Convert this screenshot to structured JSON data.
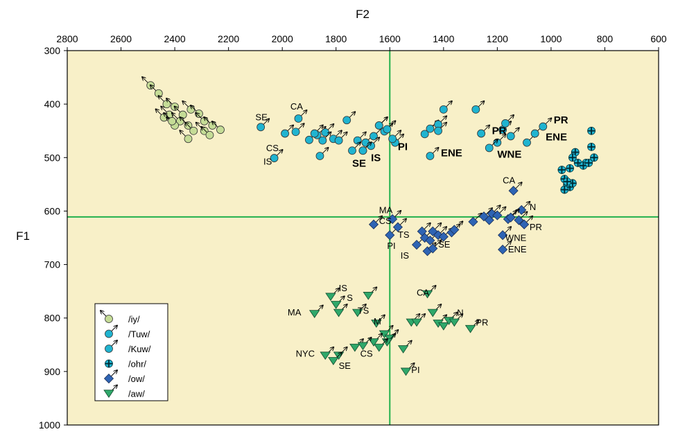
{
  "chart_data": {
    "type": "scatter",
    "title": "",
    "xlabel": "F2",
    "ylabel": "F1",
    "xlim": [
      2800,
      600
    ],
    "ylim": [
      1000,
      300
    ],
    "x_ticks": [
      "2800",
      "2600",
      "2400",
      "2200",
      "2000",
      "1800",
      "1600",
      "1400",
      "1200",
      "1000",
      "800",
      "600"
    ],
    "y_ticks": [
      "300",
      "400",
      "500",
      "600",
      "700",
      "800",
      "900",
      "1000"
    ],
    "reference_lines": {
      "x": 1600,
      "y": 611
    },
    "grid": false,
    "background": "#f8f0c8",
    "legend_position": "bottom-left",
    "series": [
      {
        "name": "/iy/",
        "marker": "circle",
        "color": "#c5dc96",
        "arrow": "up-left",
        "points": [
          [
            2490,
            365
          ],
          [
            2460,
            380
          ],
          [
            2430,
            400
          ],
          [
            2400,
            405
          ],
          [
            2370,
            420
          ],
          [
            2340,
            410
          ],
          [
            2310,
            418
          ],
          [
            2420,
            420
          ],
          [
            2380,
            432
          ],
          [
            2350,
            440
          ],
          [
            2290,
            432
          ],
          [
            2260,
            440
          ],
          [
            2230,
            448
          ],
          [
            2440,
            425
          ],
          [
            2400,
            440
          ],
          [
            2330,
            450
          ],
          [
            2290,
            450
          ],
          [
            2350,
            465
          ],
          [
            2270,
            458
          ],
          [
            2410,
            432
          ]
        ]
      },
      {
        "name": "/Tuw/",
        "marker": "circle",
        "color": "#20b4d0",
        "arrow": "up-right",
        "points": [
          [
            2080,
            443
          ],
          [
            1990,
            455
          ],
          [
            1940,
            427
          ],
          [
            1950,
            452
          ],
          [
            1900,
            467
          ],
          [
            1870,
            458
          ],
          [
            1840,
            453
          ],
          [
            1810,
            465
          ],
          [
            1790,
            468
          ],
          [
            1760,
            430
          ],
          [
            1690,
            472
          ],
          [
            1660,
            460
          ],
          [
            1640,
            440
          ],
          [
            1620,
            451
          ],
          [
            1580,
            472
          ],
          [
            1470,
            456
          ],
          [
            1450,
            446
          ],
          [
            1420,
            438
          ],
          [
            1400,
            410
          ],
          [
            1280,
            410
          ],
          [
            1260,
            455
          ],
          [
            1200,
            472
          ],
          [
            1180,
            448
          ],
          [
            1170,
            436
          ],
          [
            1090,
            472
          ],
          [
            1060,
            455
          ],
          [
            1030,
            442
          ],
          [
            1700,
            487
          ],
          [
            1670,
            478
          ],
          [
            1860,
            497
          ]
        ]
      },
      {
        "name": "/Kuw/",
        "marker": "circle",
        "color": "#20b4d0",
        "arrow": "up-right",
        "points": [
          [
            2030,
            501
          ],
          [
            1850,
            468
          ],
          [
            1880,
            455
          ],
          [
            1720,
            468
          ],
          [
            1740,
            487
          ],
          [
            1640,
            440
          ],
          [
            1590,
            465
          ],
          [
            1450,
            497
          ],
          [
            1420,
            450
          ],
          [
            1230,
            482
          ],
          [
            1150,
            460
          ],
          [
            1610,
            447
          ],
          [
            1700,
            487
          ]
        ]
      },
      {
        "name": "/ohr/",
        "marker": "cross",
        "color": "#20b4d0",
        "arrow": "none",
        "points": [
          [
            850,
            450
          ],
          [
            910,
            490
          ],
          [
            920,
            500
          ],
          [
            900,
            510
          ],
          [
            930,
            520
          ],
          [
            870,
            510
          ],
          [
            850,
            480
          ],
          [
            840,
            500
          ],
          [
            960,
            523
          ],
          [
            950,
            540
          ],
          [
            940,
            550
          ],
          [
            930,
            555
          ],
          [
            920,
            548
          ],
          [
            950,
            560
          ],
          [
            940,
            545
          ],
          [
            880,
            515
          ],
          [
            860,
            510
          ]
        ]
      },
      {
        "name": "/ow/",
        "marker": "diamond",
        "color": "#2e64b4",
        "arrow": "up-right",
        "points": [
          [
            1660,
            625
          ],
          [
            1600,
            645
          ],
          [
            1590,
            615
          ],
          [
            1570,
            630
          ],
          [
            1500,
            663
          ],
          [
            1480,
            638
          ],
          [
            1470,
            650
          ],
          [
            1460,
            675
          ],
          [
            1450,
            655
          ],
          [
            1440,
            638
          ],
          [
            1420,
            645
          ],
          [
            1400,
            648
          ],
          [
            1370,
            640
          ],
          [
            1360,
            635
          ],
          [
            1290,
            620
          ],
          [
            1250,
            610
          ],
          [
            1230,
            617
          ],
          [
            1220,
            605
          ],
          [
            1200,
            608
          ],
          [
            1180,
            645
          ],
          [
            1160,
            615
          ],
          [
            1120,
            617
          ],
          [
            1110,
            598
          ],
          [
            1100,
            625
          ],
          [
            1140,
            562
          ],
          [
            1180,
            672
          ],
          [
            1150,
            612
          ],
          [
            1440,
            670
          ]
        ]
      },
      {
        "name": "/aw/",
        "marker": "triangle-down",
        "color": "#2fa86a",
        "arrow": "up-right",
        "points": [
          [
            1880,
            792
          ],
          [
            1820,
            760
          ],
          [
            1800,
            775
          ],
          [
            1790,
            790
          ],
          [
            1720,
            790
          ],
          [
            1680,
            758
          ],
          [
            1650,
            810
          ],
          [
            1620,
            830
          ],
          [
            1600,
            838
          ],
          [
            1550,
            858
          ],
          [
            1610,
            845
          ],
          [
            1640,
            855
          ],
          [
            1660,
            845
          ],
          [
            1540,
            900
          ],
          [
            1520,
            808
          ],
          [
            1500,
            808
          ],
          [
            1460,
            755
          ],
          [
            1440,
            790
          ],
          [
            1420,
            810
          ],
          [
            1400,
            815
          ],
          [
            1380,
            805
          ],
          [
            1360,
            808
          ],
          [
            1300,
            820
          ],
          [
            1730,
            855
          ],
          [
            1700,
            852
          ],
          [
            1790,
            870
          ],
          [
            1810,
            880
          ],
          [
            1840,
            870
          ]
        ]
      }
    ],
    "annotations": [
      {
        "text": "SE",
        "x": 2100,
        "y": 430,
        "bold": false
      },
      {
        "text": "CA",
        "x": 1970,
        "y": 410,
        "bold": false
      },
      {
        "text": "CS",
        "x": 2060,
        "y": 488,
        "bold": false
      },
      {
        "text": "IS",
        "x": 2070,
        "y": 513,
        "bold": false
      },
      {
        "text": "SE",
        "x": 1740,
        "y": 517,
        "bold": true
      },
      {
        "text": "IS",
        "x": 1670,
        "y": 507,
        "bold": true
      },
      {
        "text": "PI",
        "x": 1570,
        "y": 486,
        "bold": true
      },
      {
        "text": "ENE",
        "x": 1410,
        "y": 498,
        "bold": true
      },
      {
        "text": "PR",
        "x": 1220,
        "y": 456,
        "bold": true
      },
      {
        "text": "WNE",
        "x": 1200,
        "y": 500,
        "bold": true
      },
      {
        "text": "PR",
        "x": 990,
        "y": 436,
        "bold": true
      },
      {
        "text": "ENE",
        "x": 1020,
        "y": 468,
        "bold": true
      },
      {
        "text": "CA",
        "x": 1180,
        "y": 548,
        "bold": false
      },
      {
        "text": "N",
        "x": 1080,
        "y": 598,
        "bold": false
      },
      {
        "text": "MA",
        "x": 1640,
        "y": 604,
        "bold": false
      },
      {
        "text": "CS",
        "x": 1640,
        "y": 624,
        "bold": false
      },
      {
        "text": "TS",
        "x": 1570,
        "y": 650,
        "bold": false
      },
      {
        "text": "PI",
        "x": 1610,
        "y": 671,
        "bold": false
      },
      {
        "text": "SE",
        "x": 1420,
        "y": 668,
        "bold": false
      },
      {
        "text": "IS",
        "x": 1560,
        "y": 689,
        "bold": false
      },
      {
        "text": "PR",
        "x": 1080,
        "y": 636,
        "bold": false
      },
      {
        "text": "WNE",
        "x": 1170,
        "y": 656,
        "bold": false
      },
      {
        "text": "ENE",
        "x": 1160,
        "y": 677,
        "bold": false
      },
      {
        "text": "IS",
        "x": 1790,
        "y": 750,
        "bold": false
      },
      {
        "text": "S",
        "x": 1760,
        "y": 768,
        "bold": false
      },
      {
        "text": "TS",
        "x": 1720,
        "y": 792,
        "bold": false
      },
      {
        "text": "M",
        "x": 1660,
        "y": 812,
        "bold": false
      },
      {
        "text": "CA",
        "x": 1500,
        "y": 758,
        "bold": false
      },
      {
        "text": "N",
        "x": 1350,
        "y": 796,
        "bold": false
      },
      {
        "text": "PR",
        "x": 1280,
        "y": 814,
        "bold": false
      },
      {
        "text": "MA",
        "x": 1980,
        "y": 795,
        "bold": false
      },
      {
        "text": "NYC",
        "x": 1950,
        "y": 872,
        "bold": false
      },
      {
        "text": "SE",
        "x": 1790,
        "y": 895,
        "bold": false
      },
      {
        "text": "CS",
        "x": 1710,
        "y": 872,
        "bold": false
      },
      {
        "text": "PI",
        "x": 1520,
        "y": 903,
        "bold": false
      }
    ]
  }
}
